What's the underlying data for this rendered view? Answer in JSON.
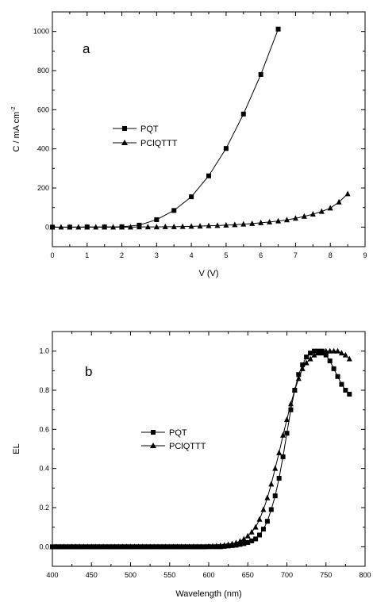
{
  "chart_data": [
    {
      "type": "line",
      "panel_label": "a",
      "xlabel": "V (V)",
      "ylabel": "C / mA cm",
      "ylabel_sup": "-2",
      "xlim": [
        0,
        9
      ],
      "ylim": [
        -100,
        1100
      ],
      "x_ticks": [
        "0",
        "1",
        "2",
        "3",
        "4",
        "5",
        "6",
        "7",
        "8",
        "9"
      ],
      "y_ticks": [
        "0",
        "200",
        "400",
        "600",
        "800",
        "1000"
      ],
      "grid": false,
      "legend_position": "center-left",
      "series": [
        {
          "name": "PQT",
          "marker": "square",
          "x": [
            0,
            0.5,
            1,
            1.5,
            2,
            2.5,
            3,
            3.5,
            4,
            4.5,
            5,
            5.5,
            6,
            6.5
          ],
          "y": [
            0,
            0,
            1,
            1,
            2,
            10,
            38,
            85,
            155,
            262,
            402,
            578,
            780,
            1012
          ]
        },
        {
          "name": "PClQTTT",
          "marker": "triangle",
          "x": [
            0,
            0.25,
            0.5,
            0.75,
            1,
            1.25,
            1.5,
            1.75,
            2,
            2.25,
            2.5,
            2.75,
            3,
            3.25,
            3.5,
            3.75,
            4,
            4.25,
            4.5,
            4.75,
            5,
            5.25,
            5.5,
            5.75,
            6,
            6.25,
            6.5,
            6.75,
            7,
            7.25,
            7.5,
            7.75,
            8,
            8.25,
            8.5
          ],
          "y": [
            0,
            0,
            0,
            0,
            0,
            0,
            0,
            0,
            0,
            0,
            1,
            1,
            1,
            2,
            2,
            3,
            4,
            5,
            7,
            8,
            10,
            12,
            15,
            18,
            22,
            26,
            31,
            37,
            45,
            55,
            66,
            80,
            97,
            128,
            170
          ]
        }
      ]
    },
    {
      "type": "line",
      "panel_label": "b",
      "xlabel": "Wavelength (nm)",
      "ylabel": "EL",
      "xlim": [
        400,
        800
      ],
      "ylim": [
        -0.1,
        1.1
      ],
      "x_ticks": [
        "400",
        "450",
        "500",
        "550",
        "600",
        "650",
        "700",
        "750",
        "800"
      ],
      "y_ticks": [
        "0.0",
        "0.2",
        "0.4",
        "0.6",
        "0.8",
        "1.0"
      ],
      "grid": false,
      "legend_position": "center-left",
      "series": [
        {
          "name": "PQT",
          "marker": "square",
          "x": [
            400,
            405,
            410,
            415,
            420,
            425,
            430,
            435,
            440,
            445,
            450,
            455,
            460,
            465,
            470,
            475,
            480,
            485,
            490,
            495,
            500,
            505,
            510,
            515,
            520,
            525,
            530,
            535,
            540,
            545,
            550,
            555,
            560,
            565,
            570,
            575,
            580,
            585,
            590,
            595,
            600,
            605,
            610,
            615,
            620,
            625,
            630,
            635,
            640,
            645,
            650,
            655,
            660,
            665,
            670,
            675,
            680,
            685,
            690,
            695,
            700,
            705,
            710,
            715,
            720,
            725,
            730,
            735,
            740,
            745,
            750,
            755,
            760,
            765,
            770,
            775,
            780
          ],
          "y": [
            0,
            0,
            0,
            0,
            0,
            0,
            0,
            0,
            0,
            0,
            0,
            0,
            0,
            0,
            0,
            0,
            0,
            0,
            0,
            0,
            0,
            0,
            0,
            0,
            0,
            0,
            0,
            0,
            0,
            0,
            0,
            0,
            0,
            0,
            0,
            0,
            0,
            0,
            0,
            0,
            0,
            0,
            0,
            0,
            0.002,
            0.004,
            0.006,
            0.008,
            0.012,
            0.016,
            0.022,
            0.03,
            0.04,
            0.06,
            0.09,
            0.13,
            0.19,
            0.26,
            0.35,
            0.46,
            0.58,
            0.7,
            0.8,
            0.88,
            0.93,
            0.97,
            0.99,
            1.0,
            1.0,
            1.0,
            0.98,
            0.95,
            0.91,
            0.87,
            0.83,
            0.8,
            0.78
          ]
        },
        {
          "name": "PClQTTT",
          "marker": "triangle",
          "x": [
            400,
            405,
            410,
            415,
            420,
            425,
            430,
            435,
            440,
            445,
            450,
            455,
            460,
            465,
            470,
            475,
            480,
            485,
            490,
            495,
            500,
            505,
            510,
            515,
            520,
            525,
            530,
            535,
            540,
            545,
            550,
            555,
            560,
            565,
            570,
            575,
            580,
            585,
            590,
            595,
            600,
            605,
            610,
            615,
            620,
            625,
            630,
            635,
            640,
            645,
            650,
            655,
            660,
            665,
            670,
            675,
            680,
            685,
            690,
            695,
            700,
            705,
            710,
            715,
            720,
            725,
            730,
            735,
            740,
            745,
            750,
            755,
            760,
            765,
            770,
            775,
            780
          ],
          "y": [
            0,
            0,
            0,
            0,
            0,
            0,
            0,
            0,
            0,
            0,
            0,
            0,
            0,
            0,
            0,
            0,
            0,
            0,
            0,
            0,
            0,
            0,
            0,
            0,
            0,
            0,
            0,
            0,
            0,
            0,
            0,
            0,
            0,
            0,
            0,
            0,
            0,
            0,
            0,
            0,
            0.002,
            0.003,
            0.004,
            0.006,
            0.008,
            0.011,
            0.015,
            0.02,
            0.028,
            0.04,
            0.055,
            0.075,
            0.1,
            0.14,
            0.19,
            0.25,
            0.32,
            0.4,
            0.48,
            0.57,
            0.65,
            0.73,
            0.8,
            0.86,
            0.91,
            0.94,
            0.96,
            0.98,
            0.99,
            0.99,
            1.0,
            1.0,
            1.0,
            1.0,
            0.99,
            0.98,
            0.96
          ]
        }
      ]
    }
  ]
}
